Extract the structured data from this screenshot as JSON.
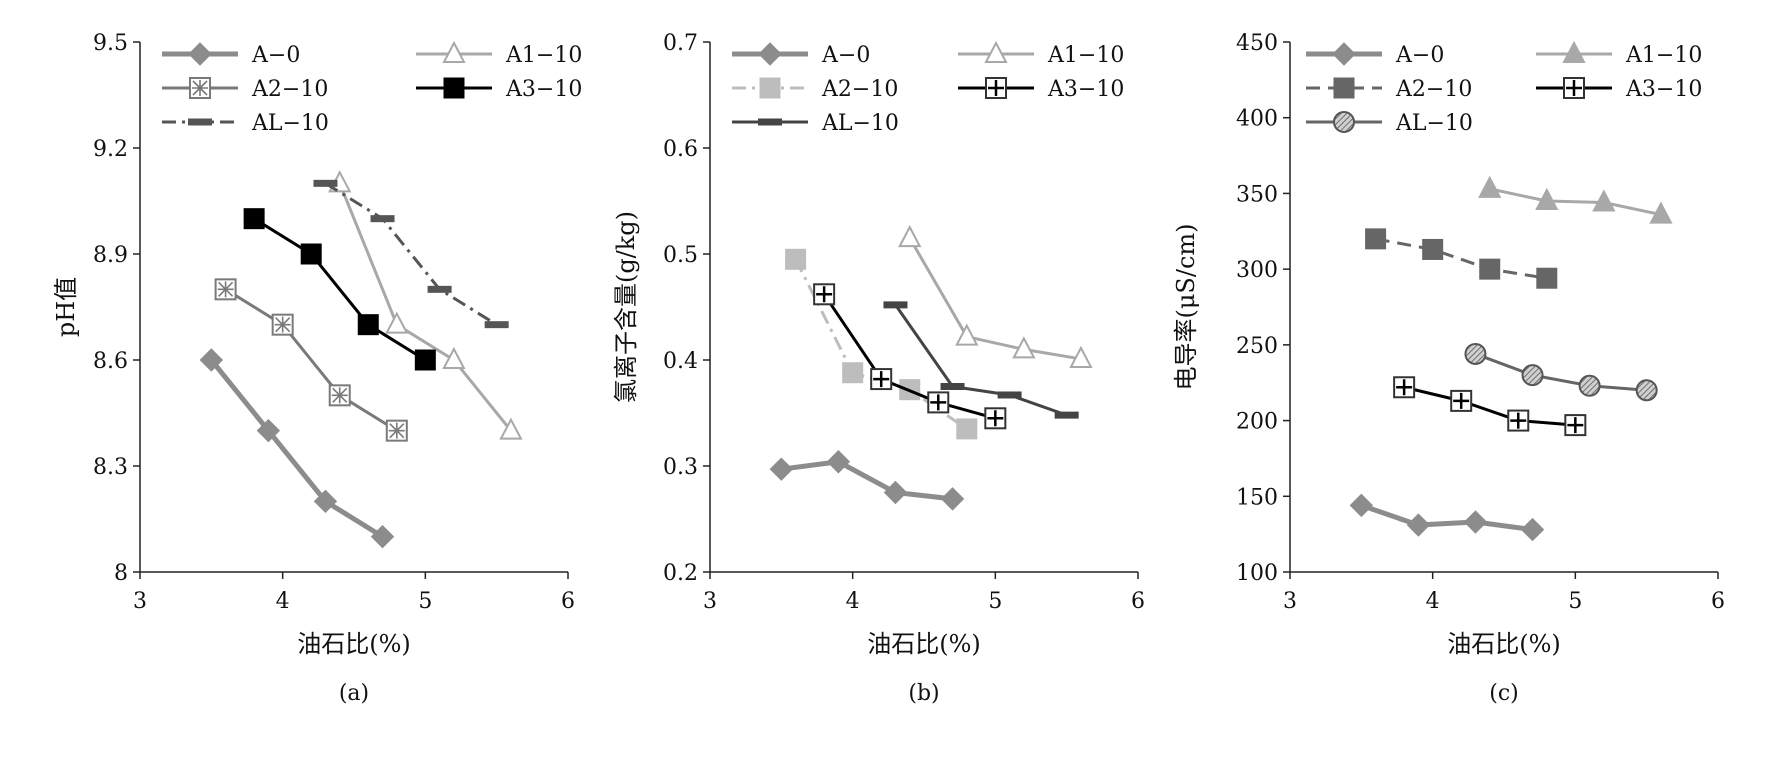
{
  "chart_data": [
    {
      "type": "line",
      "panel_label": "(a)",
      "xlabel": "油石比(%)",
      "ylabel": "pH值",
      "xlim": [
        3,
        6
      ],
      "ylim": [
        8,
        9.5
      ],
      "xticks": [
        "3",
        "4",
        "5",
        "6"
      ],
      "yticks": [
        "8",
        "8.3",
        "8.6",
        "8.9",
        "9.2",
        "9.5"
      ],
      "legend_columns": 2,
      "series": [
        {
          "name": "A−0",
          "x": [
            3.5,
            3.9,
            4.3,
            4.7
          ],
          "y": [
            8.6,
            8.4,
            8.2,
            8.1
          ]
        },
        {
          "name": "A1−10",
          "x": [
            4.4,
            4.8,
            5.2,
            5.6
          ],
          "y": [
            9.1,
            8.7,
            8.6,
            8.4
          ]
        },
        {
          "name": "A2−10",
          "x": [
            3.6,
            4.0,
            4.4,
            4.8
          ],
          "y": [
            8.8,
            8.7,
            8.5,
            8.4
          ]
        },
        {
          "name": "A3−10",
          "x": [
            3.8,
            4.2,
            4.6,
            5.0
          ],
          "y": [
            9.0,
            8.9,
            8.7,
            8.6
          ]
        },
        {
          "name": "AL−10",
          "x": [
            4.3,
            4.7,
            5.1,
            5.5
          ],
          "y": [
            9.1,
            9.0,
            8.8,
            8.7
          ]
        }
      ]
    },
    {
      "type": "line",
      "panel_label": "(b)",
      "xlabel": "油石比(%)",
      "ylabel": "氯离子含量(g/kg)",
      "xlim": [
        3,
        6
      ],
      "ylim": [
        0.2,
        0.7
      ],
      "xticks": [
        "3",
        "4",
        "5",
        "6"
      ],
      "yticks": [
        "0.2",
        "0.3",
        "0.4",
        "0.5",
        "0.6",
        "0.7"
      ],
      "legend_columns": 2,
      "series": [
        {
          "name": "A−0",
          "x": [
            3.5,
            3.9,
            4.3,
            4.7
          ],
          "y": [
            0.297,
            0.304,
            0.275,
            0.269
          ]
        },
        {
          "name": "A1−10",
          "x": [
            4.4,
            4.8,
            5.2,
            5.6
          ],
          "y": [
            0.515,
            0.422,
            0.41,
            0.401
          ]
        },
        {
          "name": "A2−10",
          "x": [
            3.6,
            4.0,
            4.4,
            4.8
          ],
          "y": [
            0.495,
            0.388,
            0.372,
            0.335
          ]
        },
        {
          "name": "A3−10",
          "x": [
            3.8,
            4.2,
            4.6,
            5.0
          ],
          "y": [
            0.462,
            0.382,
            0.36,
            0.345
          ]
        },
        {
          "name": "AL−10",
          "x": [
            4.3,
            4.7,
            5.1,
            5.5
          ],
          "y": [
            0.452,
            0.375,
            0.367,
            0.348
          ]
        }
      ]
    },
    {
      "type": "line",
      "panel_label": "(c)",
      "xlabel": "油石比(%)",
      "ylabel": "电导率(μS/cm)",
      "xlim": [
        3,
        6
      ],
      "ylim": [
        100,
        450
      ],
      "xticks": [
        "3",
        "4",
        "5",
        "6"
      ],
      "yticks": [
        "100",
        "150",
        "200",
        "250",
        "300",
        "350",
        "400",
        "450"
      ],
      "legend_columns": 2,
      "series": [
        {
          "name": "A−0",
          "x": [
            3.5,
            3.9,
            4.3,
            4.7
          ],
          "y": [
            144,
            131,
            133,
            128
          ]
        },
        {
          "name": "A1−10",
          "x": [
            4.4,
            4.8,
            5.2,
            5.6
          ],
          "y": [
            353,
            345,
            344,
            336
          ]
        },
        {
          "name": "A2−10",
          "x": [
            3.6,
            4.0,
            4.4,
            4.8
          ],
          "y": [
            320,
            313,
            300,
            294
          ]
        },
        {
          "name": "A3−10",
          "x": [
            3.8,
            4.2,
            4.6,
            5.0
          ],
          "y": [
            222,
            213,
            200,
            197
          ]
        },
        {
          "name": "AL−10",
          "x": [
            4.3,
            4.7,
            5.1,
            5.5
          ],
          "y": [
            244,
            230,
            223,
            220
          ]
        }
      ]
    }
  ],
  "series_styles": [
    [
      {
        "color": "#8c8c8c",
        "marker": "diamond",
        "dash": "",
        "width": 5,
        "marker_fill": "#8c8c8c"
      },
      {
        "color": "#a8a8a8",
        "marker": "triangle-open",
        "dash": "",
        "width": 3,
        "marker_fill": "#ffffff"
      },
      {
        "color": "#7a7a7a",
        "marker": "square-x",
        "dash": "",
        "width": 3,
        "marker_fill": "#e0e0e0"
      },
      {
        "color": "#000000",
        "marker": "square-filled",
        "dash": "",
        "width": 3,
        "marker_fill": "#000000"
      },
      {
        "color": "#555555",
        "marker": "dash",
        "dash": "14 6 3 6",
        "width": 3,
        "marker_fill": "#555555"
      }
    ],
    [
      {
        "color": "#8c8c8c",
        "marker": "diamond",
        "dash": "",
        "width": 5,
        "marker_fill": "#8c8c8c"
      },
      {
        "color": "#a8a8a8",
        "marker": "triangle-open",
        "dash": "",
        "width": 3,
        "marker_fill": "#ffffff"
      },
      {
        "color": "#bdbdbd",
        "marker": "square-filled",
        "dash": "14 6 3 6",
        "width": 3,
        "marker_fill": "#bdbdbd"
      },
      {
        "color": "#000000",
        "marker": "square-plus",
        "dash": "",
        "width": 3,
        "marker_fill": "#ffffff"
      },
      {
        "color": "#444444",
        "marker": "dash",
        "dash": "",
        "width": 3,
        "marker_fill": "#444444"
      }
    ],
    [
      {
        "color": "#8c8c8c",
        "marker": "diamond",
        "dash": "",
        "width": 5,
        "marker_fill": "#8c8c8c"
      },
      {
        "color": "#a8a8a8",
        "marker": "triangle-filled",
        "dash": "",
        "width": 3,
        "marker_fill": "#a8a8a8"
      },
      {
        "color": "#666666",
        "marker": "square-filled",
        "dash": "14 8",
        "width": 3,
        "marker_fill": "#666666"
      },
      {
        "color": "#000000",
        "marker": "square-plus",
        "dash": "",
        "width": 3,
        "marker_fill": "#ffffff"
      },
      {
        "color": "#666666",
        "marker": "circle-hatched",
        "dash": "",
        "width": 3,
        "marker_fill": "#bbbbbb"
      }
    ]
  ]
}
